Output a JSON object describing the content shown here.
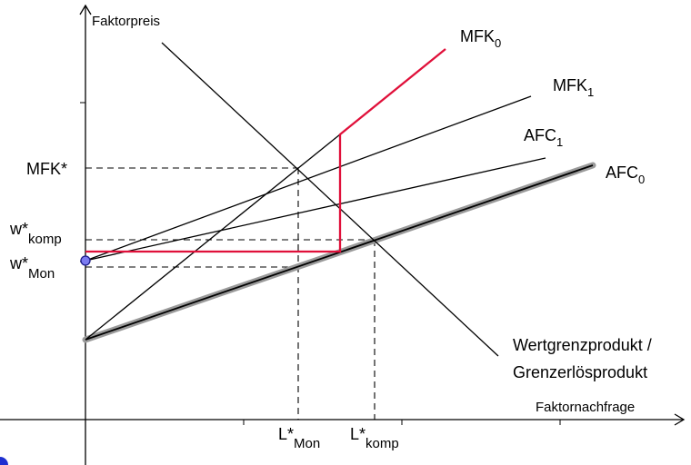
{
  "axes": {
    "y_label": "Faktorpreis",
    "x_label": "Faktornachfrage"
  },
  "curves": {
    "mfk0": {
      "base": "MFK",
      "sub": "0"
    },
    "mfk1": {
      "base": "MFK",
      "sub": "1"
    },
    "afc1": {
      "base": "AFC",
      "sub": "1"
    },
    "afc0": {
      "base": "AFC",
      "sub": "0"
    },
    "wgp_line1": "Wertgrenzprodukt /",
    "wgp_line2": "Grenzerlösprodukt"
  },
  "y_markers": {
    "mfk_star": "MFK*",
    "w_komp": {
      "base": "w*",
      "sub": "komp"
    },
    "w_mon": {
      "base": "w*",
      "sub": "Mon"
    }
  },
  "x_markers": {
    "l_mon": {
      "base": "L*",
      "sub": "Mon"
    },
    "l_komp": {
      "base": "L*",
      "sub": "komp"
    }
  },
  "colors": {
    "axis": "#000000",
    "highlight_red": "#e0103a",
    "afc0_shadow": "#9a9a9a",
    "dot_fill": "#7b7bf0",
    "dot_stroke": "#1a1a8a",
    "corner_dot": "#1e2fd0"
  }
}
